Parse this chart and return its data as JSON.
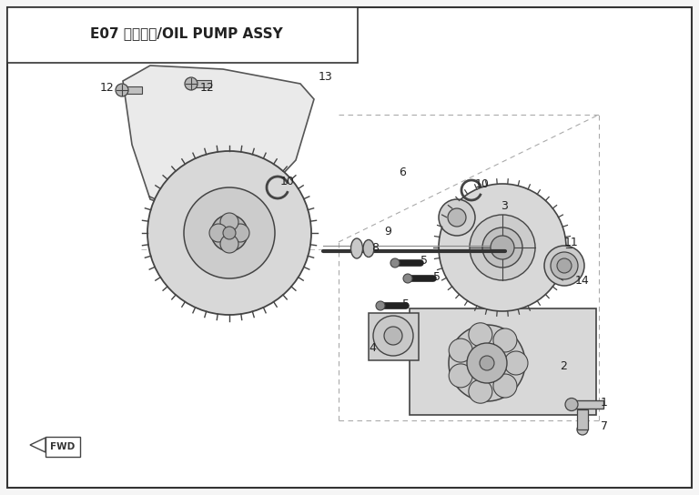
{
  "title": "E07 机油泵组/OIL PUMP ASSY",
  "line_color": "#444444",
  "title_fontsize": 11,
  "label_fontsize": 9,
  "fig_width": 7.68,
  "fig_height": 5.44,
  "dpi": 100
}
